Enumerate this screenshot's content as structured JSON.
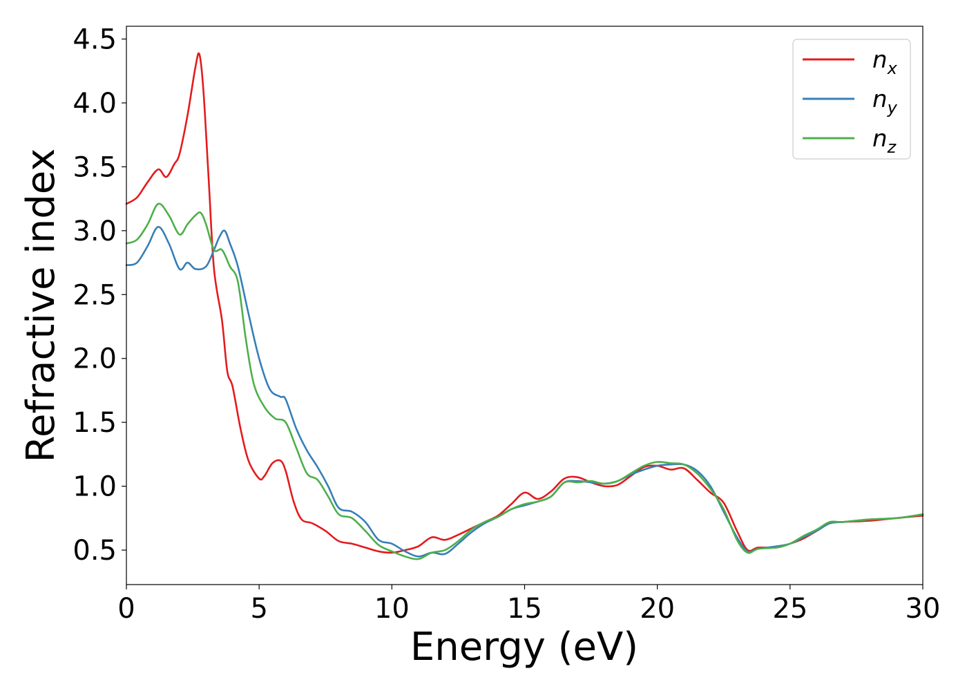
{
  "chart_data": {
    "type": "line",
    "xlabel": "Energy (eV)",
    "ylabel": "Refractive index",
    "xlim": [
      0,
      30
    ],
    "ylim": [
      0.23,
      4.6
    ],
    "xticks": [
      0,
      5,
      10,
      15,
      20,
      25,
      30
    ],
    "xtick_labels": [
      "0",
      "5",
      "10",
      "15",
      "20",
      "25",
      "30"
    ],
    "yticks": [
      0.5,
      1.0,
      1.5,
      2.0,
      2.5,
      3.0,
      3.5,
      4.0,
      4.5
    ],
    "ytick_labels": [
      "0.5",
      "1.0",
      "1.5",
      "2.0",
      "2.5",
      "3.0",
      "3.5",
      "4.0",
      "4.5"
    ],
    "grid": false,
    "legend_position": "top-right",
    "series": [
      {
        "name": "n",
        "subscript": "x",
        "color": "#e41a1c",
        "x": [
          0,
          0.4,
          0.8,
          1.2,
          1.5,
          1.8,
          2.0,
          2.3,
          2.6,
          2.75,
          2.9,
          3.1,
          3.3,
          3.6,
          3.8,
          4.0,
          4.3,
          4.6,
          5.0,
          5.2,
          5.5,
          5.8,
          6.0,
          6.3,
          6.6,
          7.0,
          7.5,
          8.0,
          8.5,
          9.0,
          9.5,
          10.0,
          10.5,
          11.0,
          11.5,
          12.0,
          12.5,
          13.0,
          13.5,
          14.0,
          14.5,
          15.0,
          15.5,
          16.0,
          16.5,
          17.0,
          17.5,
          18.0,
          18.5,
          19.0,
          19.5,
          20.0,
          20.5,
          21.0,
          21.5,
          22.0,
          22.5,
          23.0,
          23.4,
          23.8,
          24.5,
          25.0,
          25.5,
          26.0,
          26.5,
          27.0,
          28.0,
          29.0,
          30.0
        ],
        "y": [
          3.21,
          3.26,
          3.38,
          3.48,
          3.42,
          3.52,
          3.6,
          3.9,
          4.28,
          4.38,
          4.1,
          3.4,
          2.7,
          2.3,
          1.9,
          1.78,
          1.45,
          1.2,
          1.06,
          1.08,
          1.18,
          1.2,
          1.12,
          0.88,
          0.74,
          0.71,
          0.65,
          0.57,
          0.55,
          0.52,
          0.49,
          0.48,
          0.5,
          0.53,
          0.6,
          0.58,
          0.62,
          0.67,
          0.72,
          0.77,
          0.86,
          0.95,
          0.9,
          0.96,
          1.06,
          1.07,
          1.03,
          1.0,
          1.01,
          1.08,
          1.15,
          1.16,
          1.13,
          1.14,
          1.05,
          0.95,
          0.87,
          0.65,
          0.5,
          0.52,
          0.52,
          0.55,
          0.59,
          0.65,
          0.71,
          0.72,
          0.73,
          0.75,
          0.77
        ]
      },
      {
        "name": "n",
        "subscript": "y",
        "color": "#377eb8",
        "x": [
          0,
          0.4,
          0.8,
          1.2,
          1.6,
          2.0,
          2.3,
          2.6,
          3.0,
          3.3,
          3.5,
          3.7,
          3.9,
          4.2,
          4.6,
          5.0,
          5.4,
          5.8,
          6.0,
          6.4,
          6.8,
          7.2,
          7.6,
          8.0,
          8.5,
          9.0,
          9.5,
          10.0,
          10.5,
          11.0,
          11.5,
          12.0,
          12.5,
          13.0,
          13.5,
          14.0,
          14.5,
          15.0,
          15.5,
          16.0,
          16.5,
          17.0,
          17.5,
          18.0,
          18.5,
          19.0,
          19.5,
          20.0,
          20.5,
          21.0,
          21.5,
          22.0,
          22.5,
          23.0,
          23.4,
          23.8,
          24.5,
          25.0,
          25.5,
          26.0,
          26.5,
          27.0,
          28.0,
          29.0,
          30.0
        ],
        "y": [
          2.73,
          2.75,
          2.88,
          3.03,
          2.9,
          2.7,
          2.75,
          2.7,
          2.72,
          2.85,
          2.95,
          3.0,
          2.9,
          2.72,
          2.35,
          2.0,
          1.76,
          1.7,
          1.68,
          1.45,
          1.28,
          1.15,
          1.0,
          0.83,
          0.8,
          0.72,
          0.58,
          0.55,
          0.49,
          0.45,
          0.48,
          0.47,
          0.55,
          0.64,
          0.71,
          0.76,
          0.82,
          0.85,
          0.88,
          0.92,
          1.03,
          1.04,
          1.03,
          1.02,
          1.04,
          1.09,
          1.13,
          1.16,
          1.17,
          1.17,
          1.12,
          1.0,
          0.8,
          0.6,
          0.49,
          0.51,
          0.53,
          0.55,
          0.6,
          0.65,
          0.71,
          0.72,
          0.74,
          0.75,
          0.78
        ]
      },
      {
        "name": "n",
        "subscript": "z",
        "color": "#4daf4a",
        "x": [
          0,
          0.4,
          0.8,
          1.2,
          1.6,
          2.0,
          2.3,
          2.6,
          2.8,
          3.0,
          3.3,
          3.6,
          3.9,
          4.2,
          4.5,
          4.8,
          5.2,
          5.6,
          6.0,
          6.4,
          6.8,
          7.2,
          7.6,
          8.0,
          8.5,
          9.0,
          9.5,
          10.0,
          10.5,
          11.0,
          11.5,
          12.0,
          12.5,
          13.0,
          13.5,
          14.0,
          14.5,
          15.0,
          15.5,
          16.0,
          16.5,
          17.0,
          17.5,
          18.0,
          18.5,
          19.0,
          19.5,
          20.0,
          20.5,
          21.0,
          21.5,
          22.0,
          22.5,
          23.0,
          23.4,
          23.8,
          24.5,
          25.0,
          25.5,
          26.0,
          26.5,
          27.0,
          28.0,
          29.0,
          30.0
        ],
        "y": [
          2.9,
          2.93,
          3.05,
          3.21,
          3.12,
          2.97,
          3.05,
          3.12,
          3.14,
          3.05,
          2.85,
          2.85,
          2.72,
          2.6,
          2.15,
          1.8,
          1.62,
          1.53,
          1.5,
          1.3,
          1.1,
          1.05,
          0.92,
          0.78,
          0.75,
          0.65,
          0.54,
          0.49,
          0.45,
          0.43,
          0.48,
          0.5,
          0.57,
          0.66,
          0.72,
          0.76,
          0.82,
          0.86,
          0.88,
          0.92,
          1.03,
          1.03,
          1.04,
          1.02,
          1.04,
          1.1,
          1.16,
          1.19,
          1.18,
          1.17,
          1.1,
          0.98,
          0.82,
          0.58,
          0.48,
          0.51,
          0.52,
          0.55,
          0.61,
          0.66,
          0.72,
          0.72,
          0.74,
          0.75,
          0.78
        ]
      }
    ]
  }
}
